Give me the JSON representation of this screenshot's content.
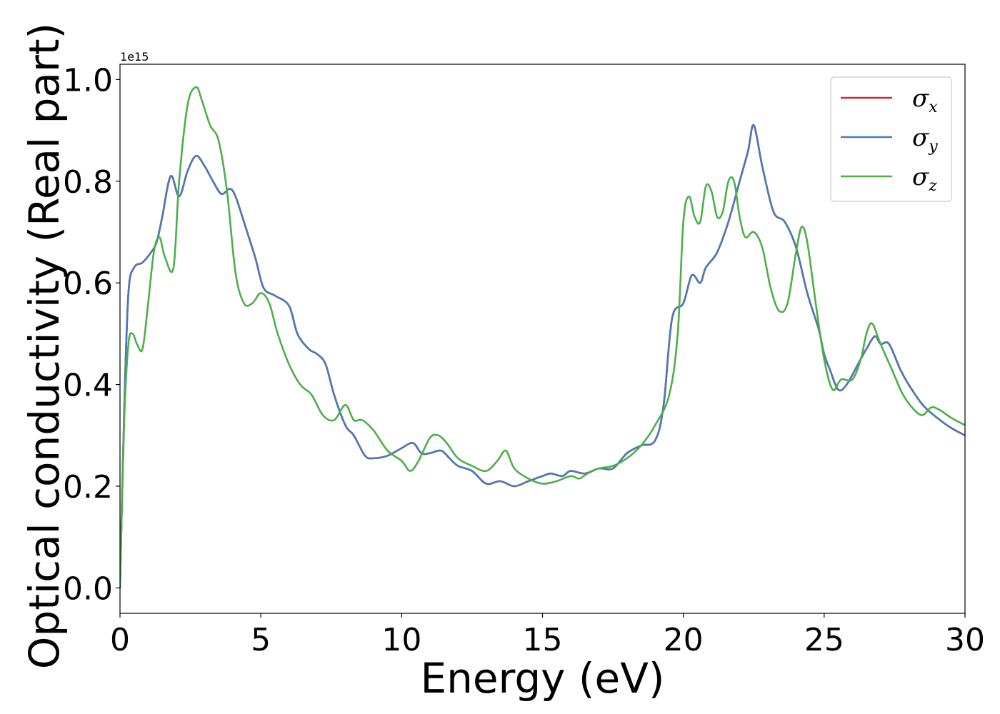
{
  "chart_data": {
    "type": "line",
    "xlabel": "Energy (eV)",
    "ylabel": "Optical conductivity (Real part)",
    "y_offset_label": "1e15",
    "xlim": [
      0,
      30
    ],
    "ylim": [
      -0.05,
      1.03
    ],
    "y_scale": 1000000000000000.0,
    "xticks": [
      0,
      5,
      10,
      15,
      20,
      25,
      30
    ],
    "xtick_labels": [
      "0",
      "5",
      "10",
      "15",
      "20",
      "25",
      "30"
    ],
    "yticks": [
      0.0,
      0.2,
      0.4,
      0.6,
      0.8,
      1.0
    ],
    "ytick_labels": [
      "0.0",
      "0.2",
      "0.4",
      "0.6",
      "0.8",
      "1.0"
    ],
    "grid": false,
    "legend_position": "top-right",
    "series": [
      {
        "name": "σx",
        "symbol": "σ",
        "subscript": "x",
        "color": "#d62728",
        "x": [
          0,
          0.15,
          0.3,
          0.5,
          0.8,
          1.1,
          1.3,
          1.5,
          1.8,
          2.1,
          2.4,
          2.7,
          3.0,
          3.3,
          3.6,
          3.9,
          4.1,
          4.4,
          4.8,
          5.1,
          5.5,
          6.0,
          6.3,
          6.7,
          7.0,
          7.3,
          7.6,
          8.0,
          8.3,
          8.7,
          9.0,
          9.5,
          10.0,
          10.4,
          10.7,
          11.0,
          11.4,
          11.7,
          12.0,
          12.5,
          13.0,
          13.5,
          14.0,
          14.5,
          15.0,
          15.3,
          15.7,
          16.0,
          16.5,
          17.0,
          17.5,
          18.0,
          18.5,
          19.0,
          19.3,
          19.6,
          20.0,
          20.3,
          20.6,
          20.8,
          21.2,
          21.6,
          22.0,
          22.3,
          22.5,
          22.8,
          23.2,
          23.6,
          24.0,
          24.4,
          24.8,
          25.0,
          25.2,
          25.5,
          25.8,
          26.2,
          26.5,
          26.8,
          27.0,
          27.3,
          27.7,
          28.0,
          28.5,
          29.0,
          29.5,
          30.0
        ],
        "y": [
          0.0,
          0.35,
          0.58,
          0.63,
          0.64,
          0.66,
          0.68,
          0.73,
          0.81,
          0.77,
          0.82,
          0.85,
          0.83,
          0.8,
          0.775,
          0.785,
          0.77,
          0.72,
          0.65,
          0.59,
          0.575,
          0.555,
          0.5,
          0.47,
          0.46,
          0.44,
          0.38,
          0.32,
          0.3,
          0.26,
          0.255,
          0.26,
          0.275,
          0.285,
          0.265,
          0.265,
          0.27,
          0.255,
          0.24,
          0.23,
          0.205,
          0.21,
          0.2,
          0.21,
          0.22,
          0.225,
          0.22,
          0.23,
          0.225,
          0.235,
          0.235,
          0.265,
          0.28,
          0.29,
          0.36,
          0.53,
          0.56,
          0.615,
          0.6,
          0.63,
          0.66,
          0.72,
          0.8,
          0.86,
          0.91,
          0.83,
          0.74,
          0.72,
          0.67,
          0.58,
          0.51,
          0.46,
          0.43,
          0.39,
          0.4,
          0.44,
          0.47,
          0.495,
          0.48,
          0.48,
          0.43,
          0.4,
          0.36,
          0.335,
          0.315,
          0.3
        ]
      },
      {
        "name": "σy",
        "symbol": "σ",
        "subscript": "y",
        "color": "#4a7ab5",
        "x": [
          0,
          0.15,
          0.3,
          0.5,
          0.8,
          1.1,
          1.3,
          1.5,
          1.8,
          2.1,
          2.4,
          2.7,
          3.0,
          3.3,
          3.6,
          3.9,
          4.1,
          4.4,
          4.8,
          5.1,
          5.5,
          6.0,
          6.3,
          6.7,
          7.0,
          7.3,
          7.6,
          8.0,
          8.3,
          8.7,
          9.0,
          9.5,
          10.0,
          10.4,
          10.7,
          11.0,
          11.4,
          11.7,
          12.0,
          12.5,
          13.0,
          13.5,
          14.0,
          14.5,
          15.0,
          15.3,
          15.7,
          16.0,
          16.5,
          17.0,
          17.5,
          18.0,
          18.5,
          19.0,
          19.3,
          19.6,
          20.0,
          20.3,
          20.6,
          20.8,
          21.2,
          21.6,
          22.0,
          22.3,
          22.5,
          22.8,
          23.2,
          23.6,
          24.0,
          24.4,
          24.8,
          25.0,
          25.2,
          25.5,
          25.8,
          26.2,
          26.5,
          26.8,
          27.0,
          27.3,
          27.7,
          28.0,
          28.5,
          29.0,
          29.5,
          30.0
        ],
        "y": [
          0.0,
          0.35,
          0.58,
          0.63,
          0.64,
          0.66,
          0.68,
          0.73,
          0.81,
          0.77,
          0.82,
          0.85,
          0.83,
          0.8,
          0.775,
          0.785,
          0.77,
          0.72,
          0.65,
          0.59,
          0.575,
          0.555,
          0.5,
          0.47,
          0.46,
          0.44,
          0.38,
          0.32,
          0.3,
          0.26,
          0.255,
          0.26,
          0.275,
          0.285,
          0.265,
          0.265,
          0.27,
          0.255,
          0.24,
          0.23,
          0.205,
          0.21,
          0.2,
          0.21,
          0.22,
          0.225,
          0.22,
          0.23,
          0.225,
          0.235,
          0.235,
          0.265,
          0.28,
          0.29,
          0.36,
          0.53,
          0.56,
          0.615,
          0.6,
          0.63,
          0.66,
          0.72,
          0.8,
          0.86,
          0.91,
          0.83,
          0.74,
          0.72,
          0.67,
          0.58,
          0.51,
          0.46,
          0.43,
          0.39,
          0.4,
          0.44,
          0.47,
          0.495,
          0.48,
          0.48,
          0.43,
          0.4,
          0.36,
          0.335,
          0.315,
          0.3
        ]
      },
      {
        "name": "σz",
        "symbol": "σ",
        "subscript": "z",
        "color": "#4daf4a",
        "x": [
          0,
          0.15,
          0.3,
          0.45,
          0.6,
          0.8,
          1.0,
          1.2,
          1.4,
          1.6,
          1.9,
          2.1,
          2.4,
          2.7,
          2.9,
          3.2,
          3.5,
          3.8,
          4.1,
          4.4,
          4.7,
          5.0,
          5.3,
          5.6,
          6.0,
          6.4,
          6.8,
          7.2,
          7.6,
          8.0,
          8.3,
          8.6,
          9.0,
          9.5,
          10.0,
          10.3,
          10.6,
          11.0,
          11.3,
          11.6,
          12.0,
          12.5,
          13.0,
          13.4,
          13.7,
          14.0,
          14.5,
          15.0,
          15.5,
          16.0,
          16.3,
          16.6,
          17.0,
          17.5,
          18.0,
          18.5,
          19.0,
          19.5,
          19.8,
          20.0,
          20.2,
          20.4,
          20.6,
          20.8,
          21.0,
          21.2,
          21.4,
          21.6,
          21.8,
          22.0,
          22.2,
          22.5,
          22.8,
          23.1,
          23.4,
          23.7,
          24.0,
          24.2,
          24.4,
          24.7,
          25.0,
          25.3,
          25.6,
          26.0,
          26.3,
          26.5,
          26.7,
          27.0,
          27.4,
          27.8,
          28.2,
          28.5,
          28.8,
          29.1,
          29.5,
          30.0
        ],
        "y": [
          0.0,
          0.33,
          0.48,
          0.5,
          0.48,
          0.47,
          0.56,
          0.66,
          0.69,
          0.65,
          0.63,
          0.8,
          0.95,
          0.985,
          0.96,
          0.91,
          0.88,
          0.78,
          0.62,
          0.56,
          0.56,
          0.58,
          0.56,
          0.5,
          0.44,
          0.4,
          0.38,
          0.34,
          0.33,
          0.36,
          0.33,
          0.33,
          0.31,
          0.27,
          0.25,
          0.23,
          0.25,
          0.295,
          0.3,
          0.285,
          0.255,
          0.24,
          0.23,
          0.25,
          0.27,
          0.235,
          0.215,
          0.205,
          0.21,
          0.22,
          0.215,
          0.225,
          0.235,
          0.24,
          0.255,
          0.28,
          0.32,
          0.38,
          0.5,
          0.72,
          0.77,
          0.73,
          0.72,
          0.79,
          0.78,
          0.73,
          0.74,
          0.8,
          0.8,
          0.73,
          0.69,
          0.7,
          0.67,
          0.59,
          0.545,
          0.56,
          0.66,
          0.71,
          0.68,
          0.56,
          0.45,
          0.39,
          0.41,
          0.41,
          0.45,
          0.5,
          0.52,
          0.48,
          0.43,
          0.38,
          0.35,
          0.34,
          0.355,
          0.35,
          0.335,
          0.32
        ]
      }
    ]
  }
}
